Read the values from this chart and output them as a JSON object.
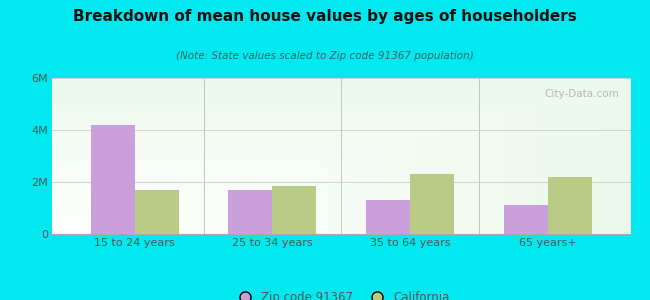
{
  "title": "Breakdown of mean house values by ages of householders",
  "subtitle": "(Note: State values scaled to Zip code 91367 population)",
  "categories": [
    "15 to 24 years",
    "25 to 34 years",
    "35 to 64 years",
    "65 years+"
  ],
  "zip_values": [
    4200000,
    1700000,
    1300000,
    1100000
  ],
  "ca_values": [
    1700000,
    1850000,
    2300000,
    2200000
  ],
  "zip_color": "#c9a0dc",
  "ca_color": "#b8cc88",
  "background_outer": "#00e8f0",
  "ylim": [
    0,
    6000000
  ],
  "yticks": [
    0,
    2000000,
    4000000,
    6000000
  ],
  "ytick_labels": [
    "0",
    "2M",
    "4M",
    "6M"
  ],
  "legend_zip": "Zip code 91367",
  "legend_ca": "California",
  "bar_width": 0.32,
  "title_color": "#111111",
  "subtitle_color": "#336666",
  "tick_color": "#555555"
}
